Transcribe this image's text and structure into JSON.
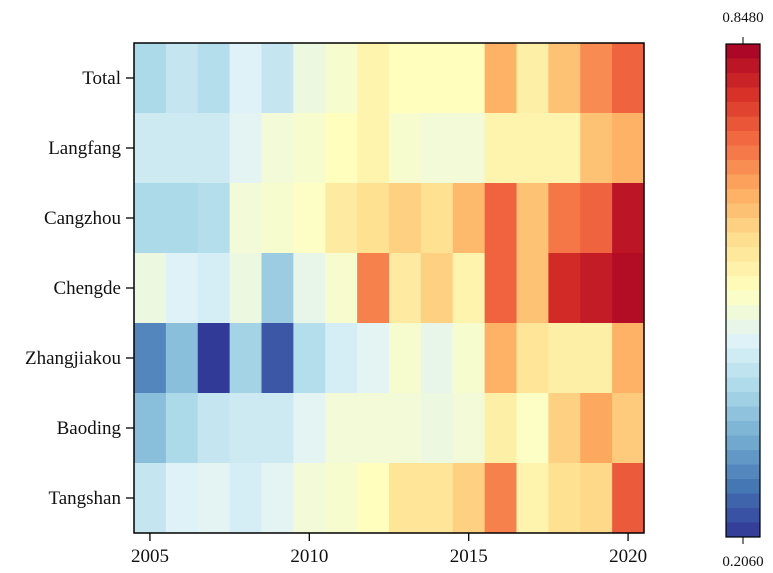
{
  "chart_data": {
    "type": "heatmap",
    "title": "",
    "xlabel": "",
    "ylabel": "",
    "x": [
      2005,
      2006,
      2007,
      2008,
      2009,
      2010,
      2011,
      2012,
      2013,
      2014,
      2015,
      2016,
      2017,
      2018,
      2019,
      2020
    ],
    "x_ticks": [
      "2005",
      "2010",
      "2015",
      "2020"
    ],
    "x_tick_values": [
      2005,
      2010,
      2015,
      2020
    ],
    "rows": [
      "Total",
      "Langfang",
      "Cangzhou",
      "Chengde",
      "Zhangjiakou",
      "Baoding",
      "Tangshan"
    ],
    "values": [
      [
        0.4,
        0.43,
        0.41,
        0.46,
        0.43,
        0.49,
        0.51,
        0.55,
        0.53,
        0.53,
        0.53,
        0.65,
        0.56,
        0.63,
        0.69,
        0.73
      ],
      [
        0.44,
        0.44,
        0.44,
        0.47,
        0.5,
        0.51,
        0.53,
        0.55,
        0.51,
        0.5,
        0.5,
        0.55,
        0.55,
        0.55,
        0.63,
        0.65
      ],
      [
        0.4,
        0.4,
        0.41,
        0.5,
        0.51,
        0.52,
        0.57,
        0.59,
        0.61,
        0.59,
        0.64,
        0.73,
        0.63,
        0.71,
        0.73,
        0.82
      ],
      [
        0.49,
        0.46,
        0.45,
        0.49,
        0.38,
        0.48,
        0.51,
        0.7,
        0.57,
        0.61,
        0.55,
        0.73,
        0.63,
        0.79,
        0.81,
        0.83
      ],
      [
        0.29,
        0.36,
        0.21,
        0.39,
        0.24,
        0.41,
        0.45,
        0.47,
        0.51,
        0.48,
        0.51,
        0.65,
        0.58,
        0.56,
        0.56,
        0.65
      ],
      [
        0.36,
        0.4,
        0.43,
        0.44,
        0.44,
        0.47,
        0.5,
        0.5,
        0.5,
        0.49,
        0.5,
        0.56,
        0.52,
        0.61,
        0.66,
        0.62
      ],
      [
        0.43,
        0.46,
        0.47,
        0.45,
        0.47,
        0.5,
        0.51,
        0.53,
        0.58,
        0.58,
        0.61,
        0.7,
        0.55,
        0.59,
        0.6,
        0.74
      ]
    ],
    "colorbar": {
      "min": 0.206,
      "max": 0.848,
      "min_label": "0.2060",
      "max_label": "0.8480"
    },
    "colormap": [
      "#313695",
      "#4575b4",
      "#74add1",
      "#abd9e9",
      "#e0f3f8",
      "#ffffbf",
      "#fee090",
      "#fdae61",
      "#f46d43",
      "#d73027",
      "#a50026"
    ],
    "grid": false,
    "legend": "colorbar-right"
  }
}
